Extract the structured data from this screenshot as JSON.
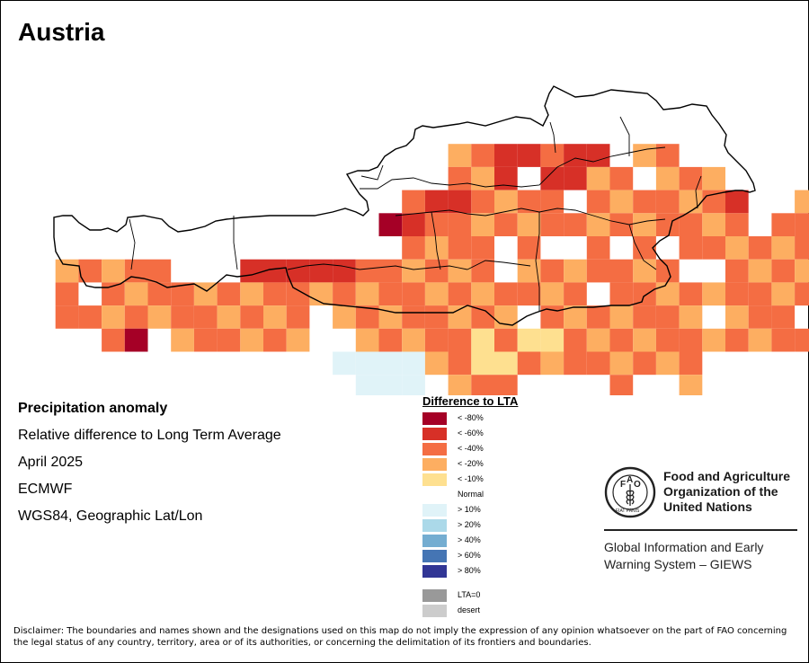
{
  "title": "Austria",
  "info": {
    "heading": "Precipitation anomaly",
    "subtitle": "Relative difference to Long Term Average",
    "date": "April 2025",
    "source": "ECMWF",
    "projection": "WGS84, Geographic Lat/Lon"
  },
  "legend": {
    "title": "Difference to LTA",
    "classes": [
      {
        "label": "< -80%",
        "color": "#a50026"
      },
      {
        "label": "< -60%",
        "color": "#d73027"
      },
      {
        "label": "< -40%",
        "color": "#f46d43"
      },
      {
        "label": "< -20%",
        "color": "#fdae61"
      },
      {
        "label": "< -10%",
        "color": "#fee090"
      },
      {
        "label": "Normal",
        "color": "#ffffff"
      },
      {
        "label": "> 10%",
        "color": "#e0f3f8"
      },
      {
        "label": "> 20%",
        "color": "#abd9e9"
      },
      {
        "label": "> 40%",
        "color": "#74add1"
      },
      {
        "label": "> 60%",
        "color": "#4575b4"
      },
      {
        "label": "> 80%",
        "color": "#313695"
      }
    ],
    "extra": [
      {
        "label": "LTA=0",
        "color": "#999999"
      },
      {
        "label": "desert",
        "color": "#cccccc"
      }
    ]
  },
  "grid_rows": [
    "..................................................",
    "..................................................",
    "..................................................",
    "..................................................",
    "........................................ABBA.A....",
    "....................................AAAAAAAAAA....",
    "..................AABBABB.AA.......AAAAAAAA..BAA.",
    "..................AAB.BBAA.AAA....AAAAAAAA.W......",
    "................ABBAAAA.AAAAAAB..AA.B...AAAA.......",
    "...............CBAAAAAAAAAAAAAA.AA.......AAAAAA.....",
    "................AAAA.A..A.A.AAAAAAAAAAAAAAAAAAAA",
    ".AAAAA...BBBBBAAAAAA.AAAAAAA..AAAAA.AAAAAAAAA...",
    ".A.AAAAAAAAAAAAAAAAAAAAA.AAAAAAAAAAAAAAAAAAA....",
    ".AAAAAAAAAAA.AAAAAAAA.AAAAAAA.AAA...AAAA.AAA....",
    "...AC.AAAAAA..AAAAAYAYYAAAAAAAAAAA.AAAAAAA.......",
    ".............WWWWAAYYAAAAAAAA.....AAAA..........",
    "..............WWW.AAA....A..A...................",
    ".....................W.........................."
  ],
  "map": {
    "country": "Austria"
  },
  "fao": {
    "name_lines": [
      "Food and Agriculture",
      "Organization of the",
      "United Nations"
    ],
    "giews_lines": [
      "Global Information and Early",
      "Warning System – GIEWS"
    ],
    "logo_letters": "FAO",
    "logo_motto": "FIAT PANIS"
  },
  "disclaimer": "Disclaimer: The boundaries and names shown and the designations used on this map do not imply the expression of any opinion whatsoever on the part of FAO concerning the legal status of any country, territory, area or of its authorities, or concerning the delimitation of its frontiers and boundaries."
}
